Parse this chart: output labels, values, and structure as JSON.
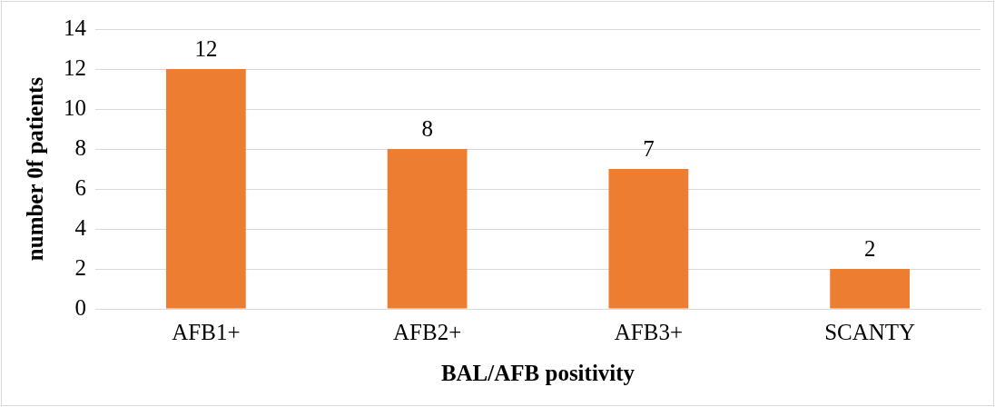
{
  "chart_data": {
    "type": "bar",
    "categories": [
      "AFB1+",
      "AFB2+",
      "AFB3+",
      "SCANTY"
    ],
    "values": [
      12,
      8,
      7,
      2
    ],
    "color": "#ed7d31",
    "xlabel": "BAL/AFB positivity",
    "ylabel": "number 0f patients",
    "ylim": [
      0,
      14
    ],
    "yticks": [
      0,
      2,
      4,
      6,
      8,
      10,
      12,
      14
    ],
    "grid": "y",
    "legend": false,
    "data_labels": true
  }
}
